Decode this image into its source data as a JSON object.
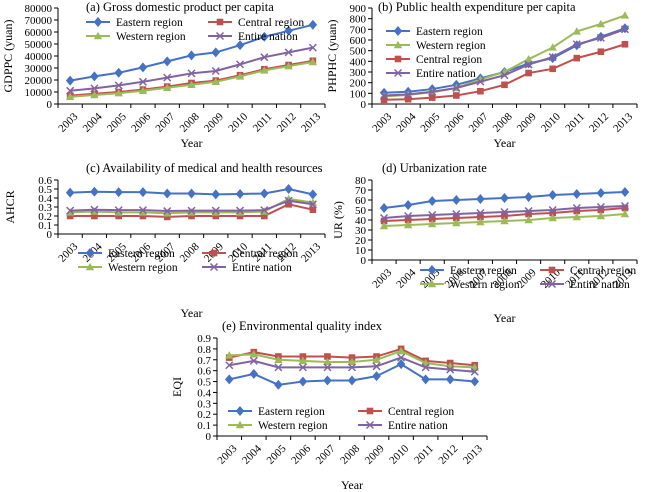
{
  "colors": {
    "eastern": "#4472C4",
    "central": "#C0504D",
    "western": "#9BBB59",
    "nation": "#8064A2",
    "axis": "#000000"
  },
  "chart_data": [
    {
      "type": "line",
      "title": "(a) Gross domestic product per capita",
      "xlabel": "Year",
      "ylabel": "GDPPC (yuan)",
      "ylim": [
        0,
        80000
      ],
      "yticks": [
        "0",
        "10000",
        "20000",
        "30000",
        "40000",
        "50000",
        "60000",
        "70000",
        "80000"
      ],
      "categories": [
        "2003",
        "2004",
        "2005",
        "2006",
        "2007",
        "2008",
        "2009",
        "2010",
        "2011",
        "2012",
        "2013"
      ],
      "legend_position": "top-left",
      "legend_columns": 2,
      "series": [
        {
          "name": "Eastern region",
          "key": "eastern",
          "marker": "diamond",
          "values": [
            19500,
            23000,
            26000,
            30500,
            35500,
            40500,
            43000,
            49000,
            56000,
            61000,
            66000
          ]
        },
        {
          "name": "Central region",
          "key": "central",
          "marker": "square",
          "values": [
            7000,
            8500,
            10000,
            12000,
            14500,
            17500,
            19500,
            24000,
            29000,
            32500,
            36000
          ]
        },
        {
          "name": "Western region",
          "key": "western",
          "marker": "triangle",
          "values": [
            6000,
            7500,
            9000,
            11000,
            13500,
            16000,
            18500,
            23000,
            28000,
            31500,
            35000
          ]
        },
        {
          "name": "Entire nation",
          "key": "nation",
          "marker": "x",
          "values": [
            11000,
            13000,
            15500,
            18500,
            22000,
            25500,
            27500,
            33000,
            39000,
            43000,
            47000
          ]
        }
      ]
    },
    {
      "type": "line",
      "title": "(b) Public health expenditure per capita",
      "xlabel": "Year",
      "ylabel": "PHPHC (yuan)",
      "ylim": [
        0,
        900
      ],
      "yticks": [
        "0",
        "100",
        "200",
        "300",
        "400",
        "500",
        "600",
        "700",
        "800",
        "900"
      ],
      "categories": [
        "2003",
        "2004",
        "2005",
        "2006",
        "2007",
        "2008",
        "2009",
        "2010",
        "2011",
        "2012",
        "2013"
      ],
      "legend_position": "top-left",
      "legend_columns": 1,
      "series": [
        {
          "name": "Eastern region",
          "key": "eastern",
          "marker": "diamond",
          "values": [
            105,
            115,
            140,
            180,
            240,
            300,
            380,
            430,
            550,
            630,
            710
          ]
        },
        {
          "name": "Western region",
          "key": "western",
          "marker": "triangle",
          "values": [
            70,
            85,
            110,
            150,
            230,
            300,
            420,
            530,
            680,
            750,
            830
          ]
        },
        {
          "name": "Central region",
          "key": "central",
          "marker": "square",
          "values": [
            40,
            45,
            60,
            80,
            120,
            180,
            290,
            330,
            430,
            490,
            560
          ]
        },
        {
          "name": "Entire nation",
          "key": "nation",
          "marker": "x",
          "values": [
            80,
            90,
            115,
            150,
            210,
            270,
            370,
            440,
            560,
            620,
            700
          ]
        }
      ]
    },
    {
      "type": "line",
      "title": "(c) Availability of medical and health resources",
      "xlabel": "Year",
      "ylabel": "AHCR",
      "ylim": [
        0,
        0.6
      ],
      "yticks": [
        "0",
        "0.1",
        "0.2",
        "0.3",
        "0.4",
        "0.5",
        "0.6"
      ],
      "categories": [
        "2003",
        "2004",
        "2005",
        "2006",
        "2007",
        "2008",
        "2009",
        "2010",
        "2011",
        "2012",
        "2013"
      ],
      "legend_position": "bottom",
      "legend_columns": 2,
      "series": [
        {
          "name": "Eastern region",
          "key": "eastern",
          "marker": "diamond",
          "values": [
            0.46,
            0.47,
            0.465,
            0.465,
            0.45,
            0.45,
            0.44,
            0.445,
            0.45,
            0.5,
            0.44
          ]
        },
        {
          "name": "Central region",
          "key": "central",
          "marker": "square",
          "values": [
            0.2,
            0.2,
            0.2,
            0.2,
            0.19,
            0.2,
            0.2,
            0.2,
            0.2,
            0.33,
            0.27
          ]
        },
        {
          "name": "Western region",
          "key": "western",
          "marker": "triangle",
          "values": [
            0.24,
            0.25,
            0.24,
            0.24,
            0.23,
            0.24,
            0.24,
            0.24,
            0.25,
            0.39,
            0.35
          ]
        },
        {
          "name": "Entire nation",
          "key": "nation",
          "marker": "x",
          "values": [
            0.26,
            0.27,
            0.265,
            0.265,
            0.255,
            0.26,
            0.26,
            0.26,
            0.265,
            0.37,
            0.33
          ]
        }
      ]
    },
    {
      "type": "line",
      "title": "(d) Urbanization rate",
      "xlabel": "Year",
      "ylabel": "UR (%)",
      "ylim": [
        0,
        80
      ],
      "yticks": [
        "0",
        "10",
        "20",
        "30",
        "40",
        "50",
        "60",
        "70",
        "80"
      ],
      "categories": [
        "2003",
        "2004",
        "2005",
        "2006",
        "2007",
        "2008",
        "2009",
        "2010",
        "2011",
        "2012",
        "2013"
      ],
      "legend_position": "bottom",
      "legend_columns": 2,
      "series": [
        {
          "name": "Eastern region",
          "key": "eastern",
          "marker": "diamond",
          "values": [
            52,
            55,
            59,
            60,
            61,
            62,
            63,
            65,
            66,
            67,
            68
          ]
        },
        {
          "name": "Central region",
          "key": "central",
          "marker": "square",
          "values": [
            39,
            40,
            41,
            42,
            43,
            44,
            46,
            47,
            49,
            50,
            52
          ]
        },
        {
          "name": "Western region",
          "key": "western",
          "marker": "triangle",
          "values": [
            34,
            35,
            36,
            37,
            38,
            39,
            40,
            42,
            43,
            44,
            46
          ]
        },
        {
          "name": "Entire nation",
          "key": "nation",
          "marker": "x",
          "values": [
            42,
            44,
            45,
            46,
            47,
            48,
            49,
            50,
            52,
            53,
            54
          ]
        }
      ]
    },
    {
      "type": "line",
      "title": "(e) Environmental quality index",
      "xlabel": "Year",
      "ylabel": "EQI",
      "ylim": [
        0,
        0.9
      ],
      "yticks": [
        "0",
        "0.1",
        "0.2",
        "0.3",
        "0.4",
        "0.5",
        "0.6",
        "0.7",
        "0.8",
        "0.9"
      ],
      "categories": [
        "2003",
        "2004",
        "2005",
        "2006",
        "2007",
        "2008",
        "2009",
        "2010",
        "2011",
        "2012",
        "2013"
      ],
      "legend_position": "bottom",
      "legend_columns": 2,
      "series": [
        {
          "name": "Eastern region",
          "key": "eastern",
          "marker": "diamond",
          "values": [
            0.52,
            0.57,
            0.47,
            0.5,
            0.51,
            0.51,
            0.55,
            0.66,
            0.52,
            0.52,
            0.5
          ]
        },
        {
          "name": "Central region",
          "key": "central",
          "marker": "square",
          "values": [
            0.72,
            0.77,
            0.73,
            0.73,
            0.73,
            0.72,
            0.73,
            0.8,
            0.69,
            0.67,
            0.65
          ]
        },
        {
          "name": "Western region",
          "key": "western",
          "marker": "triangle",
          "values": [
            0.74,
            0.75,
            0.7,
            0.69,
            0.68,
            0.68,
            0.7,
            0.78,
            0.67,
            0.64,
            0.63
          ]
        },
        {
          "name": "Entire nation",
          "key": "nation",
          "marker": "x",
          "values": [
            0.65,
            0.69,
            0.63,
            0.63,
            0.63,
            0.63,
            0.64,
            0.72,
            0.63,
            0.61,
            0.59
          ]
        }
      ]
    }
  ]
}
